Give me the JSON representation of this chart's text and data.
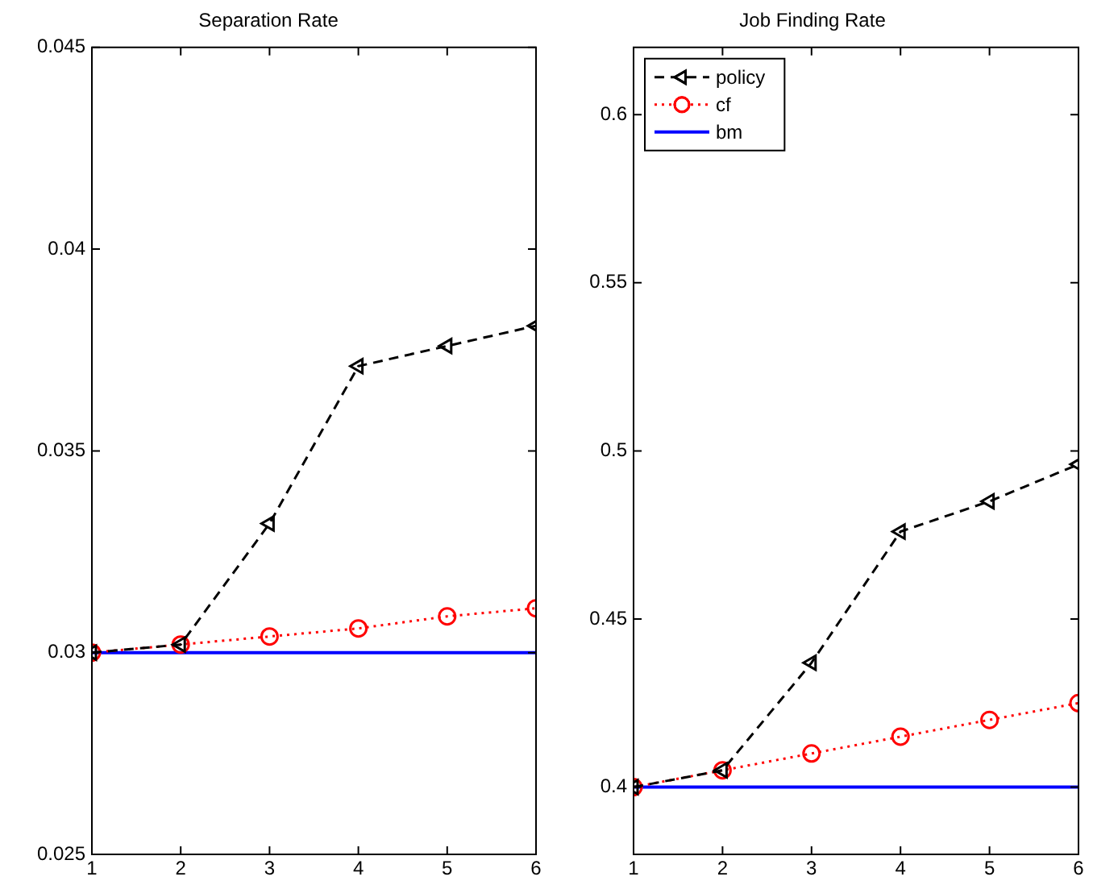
{
  "chart_data": [
    {
      "type": "line",
      "title": "Separation Rate",
      "x": [
        1,
        2,
        3,
        4,
        5,
        6
      ],
      "xlim": [
        1,
        6
      ],
      "xticks": [
        1,
        2,
        3,
        4,
        5,
        6
      ],
      "ylim": [
        0.025,
        0.045
      ],
      "yticks": [
        0.025,
        0.03,
        0.035,
        0.04,
        0.045
      ],
      "grid": false,
      "legend": false,
      "series": [
        {
          "color": "#000000",
          "line_style": "dashed",
          "marker": "triangle",
          "values": [
            0.03,
            0.0302,
            0.0332,
            0.0371,
            0.0376,
            0.0381
          ]
        },
        {
          "color": "#ff0000",
          "line_style": "dotted",
          "marker": "circle",
          "values": [
            0.03,
            0.0302,
            0.0304,
            0.0306,
            0.0309,
            0.0311
          ]
        },
        {
          "color": "#0000ff",
          "line_style": "solid",
          "marker": "none",
          "values": [
            0.03,
            0.03,
            0.03,
            0.03,
            0.03,
            0.03
          ]
        }
      ]
    },
    {
      "type": "line",
      "title": "Job Finding Rate",
      "x": [
        1,
        2,
        3,
        4,
        5,
        6
      ],
      "xlim": [
        1,
        6
      ],
      "xticks": [
        1,
        2,
        3,
        4,
        5,
        6
      ],
      "ylim": [
        0.38,
        0.62
      ],
      "yticks": [
        0.4,
        0.45,
        0.5,
        0.55,
        0.6
      ],
      "grid": false,
      "legend": "top left",
      "series": [
        {
          "name": "policy",
          "color": "#000000",
          "line_style": "dashed",
          "marker": "triangle",
          "values": [
            0.4,
            0.405,
            0.437,
            0.476,
            0.485,
            0.496
          ]
        },
        {
          "name": "cf",
          "color": "#ff0000",
          "line_style": "dotted",
          "marker": "circle",
          "values": [
            0.4,
            0.405,
            0.41,
            0.415,
            0.42,
            0.425
          ]
        },
        {
          "name": "bm",
          "color": "#0000ff",
          "line_style": "solid",
          "marker": "none",
          "values": [
            0.4,
            0.4,
            0.4,
            0.4,
            0.4,
            0.4
          ]
        }
      ]
    }
  ]
}
